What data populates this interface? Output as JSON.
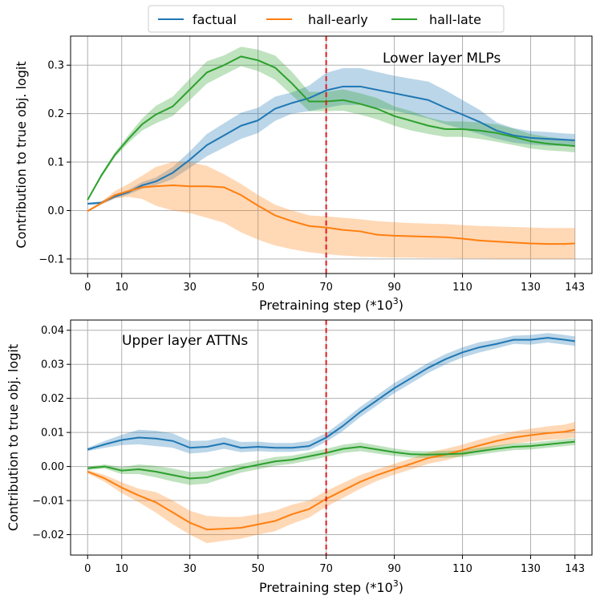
{
  "legend": {
    "entries": [
      {
        "name": "factual",
        "color": "#1f77b4"
      },
      {
        "name": "hall-early",
        "color": "#ff7f0e"
      },
      {
        "name": "hall-late",
        "color": "#2ca02c"
      }
    ]
  },
  "chart_data": [
    {
      "type": "line",
      "title": "Lower layer MLPs",
      "xlabel": "Pretraining step (*10",
      "xlabel_sup": "3",
      "xlabel_close": ")",
      "ylabel": "Contribution to true obj. logit",
      "xlim": [
        -5,
        148
      ],
      "ylim": [
        -0.13,
        0.36
      ],
      "xticks": [
        0,
        10,
        30,
        50,
        70,
        90,
        110,
        130,
        143
      ],
      "yticks": [
        -0.1,
        0.0,
        0.1,
        0.2,
        0.3
      ],
      "ytick_labels": [
        "−0.1",
        "0.0",
        "0.1",
        "0.2",
        "0.3"
      ],
      "vline": {
        "x": 70,
        "color": "#e31a1c"
      },
      "grid": true,
      "series": [
        {
          "name": "factual",
          "color": "#1f77b4",
          "x": [
            0,
            4,
            8,
            12,
            16,
            20,
            25,
            30,
            35,
            40,
            45,
            50,
            55,
            60,
            65,
            70,
            75,
            80,
            85,
            90,
            95,
            100,
            105,
            110,
            115,
            120,
            125,
            130,
            135,
            140,
            143
          ],
          "y": [
            0.014,
            0.016,
            0.029,
            0.038,
            0.052,
            0.06,
            0.078,
            0.105,
            0.135,
            0.155,
            0.175,
            0.186,
            0.21,
            0.222,
            0.232,
            0.248,
            0.256,
            0.256,
            0.249,
            0.242,
            0.235,
            0.228,
            0.212,
            0.198,
            0.183,
            0.165,
            0.155,
            0.15,
            0.148,
            0.146,
            0.145
          ],
          "lower": [
            0.012,
            0.013,
            0.025,
            0.033,
            0.045,
            0.052,
            0.065,
            0.088,
            0.112,
            0.13,
            0.148,
            0.16,
            0.185,
            0.2,
            0.205,
            0.212,
            0.218,
            0.218,
            0.212,
            0.206,
            0.198,
            0.19,
            0.178,
            0.168,
            0.158,
            0.148,
            0.14,
            0.136,
            0.134,
            0.133,
            0.132
          ],
          "upper": [
            0.016,
            0.019,
            0.033,
            0.043,
            0.059,
            0.068,
            0.09,
            0.122,
            0.158,
            0.18,
            0.202,
            0.212,
            0.235,
            0.244,
            0.258,
            0.284,
            0.294,
            0.294,
            0.286,
            0.278,
            0.272,
            0.266,
            0.248,
            0.228,
            0.208,
            0.182,
            0.17,
            0.164,
            0.162,
            0.159,
            0.158
          ]
        },
        {
          "name": "hall-early",
          "color": "#ff7f0e",
          "x": [
            0,
            4,
            8,
            12,
            16,
            20,
            25,
            30,
            35,
            40,
            45,
            50,
            55,
            60,
            65,
            70,
            75,
            80,
            85,
            90,
            95,
            100,
            105,
            110,
            115,
            120,
            125,
            130,
            135,
            140,
            143
          ],
          "y": [
            -0.001,
            0.015,
            0.032,
            0.04,
            0.048,
            0.05,
            0.052,
            0.05,
            0.05,
            0.048,
            0.032,
            0.01,
            -0.01,
            -0.022,
            -0.032,
            -0.035,
            -0.04,
            -0.043,
            -0.05,
            -0.052,
            -0.053,
            -0.054,
            -0.055,
            -0.058,
            -0.062,
            -0.064,
            -0.066,
            -0.068,
            -0.069,
            -0.069,
            -0.068
          ],
          "lower": [
            -0.003,
            0.012,
            0.025,
            0.028,
            0.024,
            0.01,
            0.0,
            -0.005,
            -0.015,
            -0.025,
            -0.045,
            -0.06,
            -0.072,
            -0.08,
            -0.086,
            -0.09,
            -0.093,
            -0.095,
            -0.096,
            -0.097,
            -0.097,
            -0.098,
            -0.098,
            -0.099,
            -0.099,
            -0.1,
            -0.1,
            -0.1,
            -0.1,
            -0.1,
            -0.1
          ],
          "upper": [
            0.001,
            0.018,
            0.04,
            0.055,
            0.072,
            0.09,
            0.1,
            0.1,
            0.092,
            0.075,
            0.055,
            0.032,
            0.012,
            0.0,
            -0.01,
            -0.012,
            -0.015,
            -0.018,
            -0.022,
            -0.024,
            -0.026,
            -0.027,
            -0.028,
            -0.03,
            -0.032,
            -0.033,
            -0.034,
            -0.035,
            -0.036,
            -0.036,
            -0.036
          ]
        },
        {
          "name": "hall-late",
          "color": "#2ca02c",
          "x": [
            0,
            4,
            8,
            12,
            16,
            20,
            25,
            30,
            35,
            40,
            45,
            50,
            55,
            60,
            65,
            70,
            75,
            80,
            85,
            90,
            95,
            100,
            105,
            110,
            115,
            120,
            125,
            130,
            135,
            140,
            143
          ],
          "y": [
            0.022,
            0.072,
            0.115,
            0.148,
            0.178,
            0.198,
            0.215,
            0.25,
            0.285,
            0.3,
            0.318,
            0.31,
            0.295,
            0.262,
            0.225,
            0.225,
            0.228,
            0.22,
            0.21,
            0.195,
            0.185,
            0.175,
            0.168,
            0.168,
            0.165,
            0.16,
            0.152,
            0.143,
            0.138,
            0.135,
            0.133
          ],
          "lower": [
            0.02,
            0.068,
            0.11,
            0.14,
            0.165,
            0.18,
            0.195,
            0.228,
            0.262,
            0.28,
            0.298,
            0.288,
            0.27,
            0.238,
            0.205,
            0.205,
            0.206,
            0.198,
            0.188,
            0.175,
            0.165,
            0.158,
            0.152,
            0.152,
            0.148,
            0.142,
            0.135,
            0.128,
            0.124,
            0.122,
            0.12
          ],
          "upper": [
            0.024,
            0.076,
            0.12,
            0.156,
            0.19,
            0.216,
            0.235,
            0.272,
            0.308,
            0.32,
            0.338,
            0.332,
            0.32,
            0.286,
            0.245,
            0.245,
            0.25,
            0.242,
            0.232,
            0.215,
            0.205,
            0.192,
            0.184,
            0.184,
            0.182,
            0.178,
            0.169,
            0.158,
            0.152,
            0.148,
            0.146
          ]
        }
      ]
    },
    {
      "type": "line",
      "title": "Upper layer ATTNs",
      "xlabel": "Pretraining step (*10",
      "xlabel_sup": "3",
      "xlabel_close": ")",
      "ylabel": "Contribution to true obj. logit",
      "xlim": [
        -5,
        148
      ],
      "ylim": [
        -0.026,
        0.043
      ],
      "xticks": [
        0,
        10,
        30,
        50,
        70,
        90,
        110,
        130,
        143
      ],
      "yticks": [
        -0.02,
        -0.01,
        0.0,
        0.01,
        0.02,
        0.03,
        0.04
      ],
      "ytick_labels": [
        "−0.02",
        "−0.01",
        "0.00",
        "0.01",
        "0.02",
        "0.03",
        "0.04"
      ],
      "vline": {
        "x": 70,
        "color": "#e31a1c"
      },
      "grid": true,
      "series": [
        {
          "name": "factual",
          "color": "#1f77b4",
          "x": [
            0,
            5,
            10,
            15,
            20,
            25,
            30,
            35,
            40,
            45,
            50,
            55,
            60,
            65,
            70,
            75,
            80,
            85,
            90,
            95,
            100,
            105,
            110,
            115,
            120,
            125,
            130,
            135,
            140,
            143
          ],
          "y": [
            0.005,
            0.0065,
            0.0078,
            0.0085,
            0.0082,
            0.0075,
            0.0055,
            0.0058,
            0.0068,
            0.0055,
            0.0058,
            0.0055,
            0.0055,
            0.006,
            0.0085,
            0.012,
            0.016,
            0.0195,
            0.023,
            0.026,
            0.029,
            0.0315,
            0.0335,
            0.035,
            0.036,
            0.0372,
            0.0372,
            0.0378,
            0.0372,
            0.0368
          ],
          "lower": [
            0.0045,
            0.0055,
            0.0063,
            0.0065,
            0.006,
            0.0055,
            0.0038,
            0.0042,
            0.0052,
            0.0042,
            0.0045,
            0.0043,
            0.0043,
            0.0048,
            0.0072,
            0.0105,
            0.0145,
            0.018,
            0.0215,
            0.0245,
            0.0275,
            0.03,
            0.032,
            0.0335,
            0.0347,
            0.036,
            0.0358,
            0.0364,
            0.0358,
            0.0354
          ],
          "upper": [
            0.0055,
            0.0075,
            0.0093,
            0.0108,
            0.0105,
            0.0097,
            0.0075,
            0.0076,
            0.0086,
            0.0072,
            0.0073,
            0.0069,
            0.0069,
            0.0075,
            0.0098,
            0.0135,
            0.0175,
            0.021,
            0.0245,
            0.0275,
            0.0305,
            0.033,
            0.035,
            0.0365,
            0.0373,
            0.0384,
            0.0386,
            0.0392,
            0.0386,
            0.0382
          ]
        },
        {
          "name": "hall-early",
          "color": "#ff7f0e",
          "x": [
            0,
            5,
            10,
            15,
            20,
            25,
            30,
            35,
            40,
            45,
            50,
            55,
            60,
            65,
            70,
            75,
            80,
            85,
            90,
            95,
            100,
            105,
            110,
            115,
            120,
            125,
            130,
            135,
            140,
            143
          ],
          "y": [
            -0.0015,
            -0.0035,
            -0.0062,
            -0.0085,
            -0.0105,
            -0.0135,
            -0.0165,
            -0.0185,
            -0.0183,
            -0.018,
            -0.017,
            -0.016,
            -0.014,
            -0.0125,
            -0.0095,
            -0.007,
            -0.0045,
            -0.0025,
            -0.0008,
            0.0008,
            0.0025,
            0.0035,
            0.0048,
            0.0062,
            0.0075,
            0.0085,
            0.0092,
            0.0098,
            0.0102,
            0.0108
          ],
          "lower": [
            -0.002,
            -0.0045,
            -0.0078,
            -0.0105,
            -0.0135,
            -0.017,
            -0.02,
            -0.0225,
            -0.0218,
            -0.0212,
            -0.02,
            -0.019,
            -0.0168,
            -0.015,
            -0.0118,
            -0.0092,
            -0.0065,
            -0.0042,
            -0.0024,
            -0.0008,
            0.0008,
            0.0018,
            0.0032,
            0.0045,
            0.0058,
            0.0067,
            0.0073,
            0.0078,
            0.0081,
            0.0085
          ],
          "upper": [
            -0.001,
            -0.0025,
            -0.0046,
            -0.0065,
            -0.0075,
            -0.01,
            -0.013,
            -0.0145,
            -0.0148,
            -0.0148,
            -0.014,
            -0.013,
            -0.0112,
            -0.01,
            -0.0072,
            -0.0048,
            -0.0025,
            -0.0008,
            0.0008,
            0.0024,
            0.0042,
            0.0052,
            0.0064,
            0.0079,
            0.0092,
            0.0103,
            0.0111,
            0.0118,
            0.0123,
            0.0131
          ]
        },
        {
          "name": "hall-late",
          "color": "#2ca02c",
          "x": [
            0,
            5,
            10,
            15,
            20,
            25,
            30,
            35,
            40,
            45,
            50,
            55,
            60,
            65,
            70,
            75,
            80,
            85,
            90,
            95,
            100,
            105,
            110,
            115,
            120,
            125,
            130,
            135,
            140,
            143
          ],
          "y": [
            -0.0005,
            0.0,
            -0.0012,
            -0.0008,
            -0.0015,
            -0.0025,
            -0.0035,
            -0.0032,
            -0.0018,
            -0.0005,
            0.0005,
            0.0015,
            0.002,
            0.003,
            0.004,
            0.0052,
            0.0058,
            0.005,
            0.0042,
            0.0036,
            0.0035,
            0.0036,
            0.0038,
            0.0045,
            0.0052,
            0.0058,
            0.006,
            0.0065,
            0.007,
            0.0073
          ],
          "lower": [
            -0.001,
            -0.0006,
            -0.0022,
            -0.0022,
            -0.0032,
            -0.0044,
            -0.0054,
            -0.005,
            -0.0034,
            -0.0018,
            -0.0008,
            0.0002,
            0.0008,
            0.0018,
            0.0028,
            0.004,
            0.0045,
            0.0038,
            0.0031,
            0.0026,
            0.0025,
            0.0026,
            0.0028,
            0.0035,
            0.0042,
            0.0048,
            0.005,
            0.0055,
            0.006,
            0.0063
          ],
          "upper": [
            0.0,
            0.0006,
            -0.0002,
            0.0006,
            0.0002,
            -0.0006,
            -0.0016,
            -0.0014,
            -0.0002,
            0.0008,
            0.0018,
            0.0028,
            0.0032,
            0.0042,
            0.0052,
            0.0064,
            0.0071,
            0.0062,
            0.0053,
            0.0046,
            0.0045,
            0.0046,
            0.0048,
            0.0055,
            0.0062,
            0.0068,
            0.007,
            0.0075,
            0.008,
            0.0083
          ]
        }
      ]
    }
  ]
}
